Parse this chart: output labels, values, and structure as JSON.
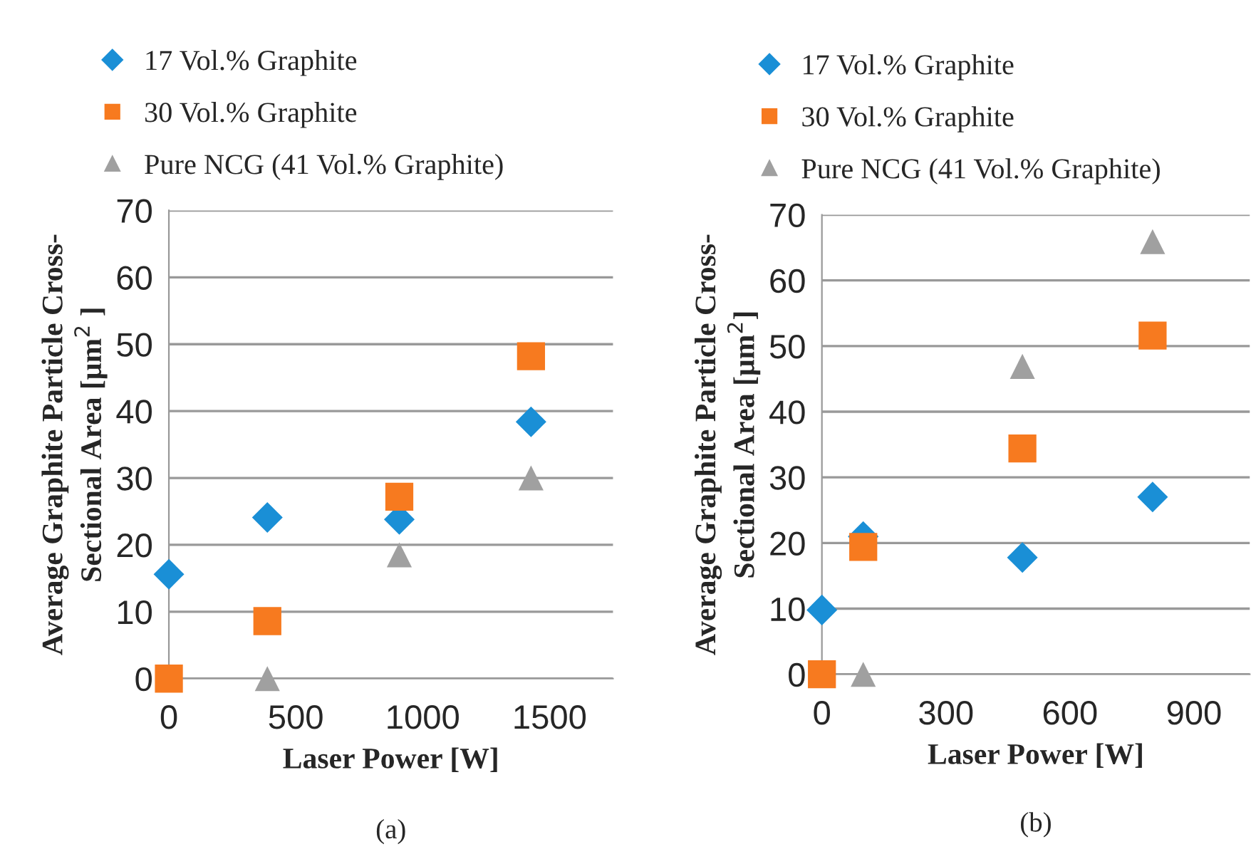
{
  "chart_data": [
    {
      "type": "scatter",
      "xlabel": "Laser Power [W]",
      "ylabel": "Average Graphite Particle Cross-\nSectional Area [μm$^{2}$ ]",
      "annotations": [
        "(a)"
      ],
      "xlim": [
        0,
        1750
      ],
      "xticks": [
        0,
        500,
        1000,
        1500
      ],
      "ylim": [
        0,
        70
      ],
      "yticks": [
        0,
        10,
        20,
        30,
        40,
        50,
        60,
        70
      ],
      "grid": "y",
      "legend": "top left",
      "series": [
        {
          "name": "17 Vol.% Graphite",
          "color": "#1a8fd6",
          "marker": "diamond",
          "x": [
            0,
            388,
            908,
            1427
          ],
          "values": [
            15.6,
            24.1,
            23.8,
            38.4
          ]
        },
        {
          "name": "30 Vol.% Graphite",
          "color": "#f77a1f",
          "marker": "square",
          "x": [
            0,
            388,
            908,
            1427
          ],
          "values": [
            0,
            8.6,
            27.2,
            48.2
          ]
        },
        {
          "name": "Pure NCG (41 Vol.% Graphite)",
          "color": "#a0a0a0",
          "marker": "triangle",
          "x": [
            388,
            908,
            1427
          ],
          "values": [
            0,
            18.5,
            30
          ]
        }
      ]
    },
    {
      "type": "scatter",
      "xlabel": "Laser Power [W]",
      "ylabel": "Average Graphite Particle Cross-\nSectional Area [μm$^{2}$]",
      "annotations": [
        "(b)"
      ],
      "xlim": [
        0,
        1035
      ],
      "xticks": [
        0,
        300,
        600,
        900
      ],
      "ylim": [
        0,
        70
      ],
      "yticks": [
        0,
        10,
        20,
        30,
        40,
        50,
        60,
        70
      ],
      "grid": "y",
      "legend": "top left",
      "series": [
        {
          "name": "17 Vol.% Graphite",
          "color": "#1a8fd6",
          "marker": "diamond",
          "x": [
            0,
            100,
            485,
            800
          ],
          "values": [
            9.8,
            21,
            17.8,
            27
          ]
        },
        {
          "name": "30 Vol.% Graphite",
          "color": "#f77a1f",
          "marker": "square",
          "x": [
            0,
            100,
            485,
            800
          ],
          "values": [
            0,
            19.4,
            34.4,
            51.6
          ]
        },
        {
          "name": "Pure NCG (41 Vol.% Graphite)",
          "color": "#a0a0a0",
          "marker": "triangle",
          "x": [
            100,
            485,
            800
          ],
          "values": [
            0,
            46.9,
            65.9
          ]
        }
      ]
    }
  ]
}
